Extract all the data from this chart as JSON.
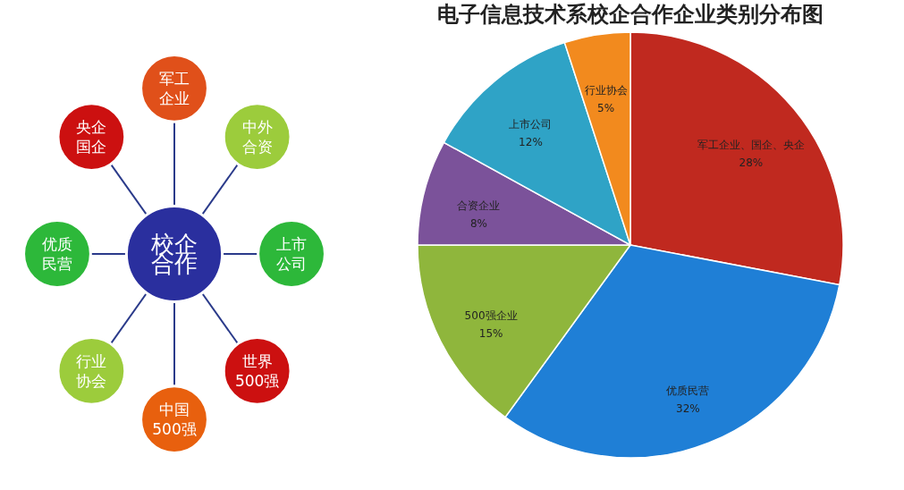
{
  "chart_data": [
    {
      "type": "other",
      "annotations": [
        "校企合作",
        "军工企业",
        "中外合资",
        "上市公司",
        "世界500强",
        "中国500强",
        "行业协会",
        "优质民营",
        "央企国企"
      ],
      "colors": [
        "#2a2f9e",
        "#e0501a",
        "#9ccc3c",
        "#2db83a",
        "#cc1010",
        "#e8600e",
        "#9ccc3c",
        "#2db83a",
        "#cc1010"
      ]
    },
    {
      "type": "pie",
      "title": "电子信息技术系校企合作企业类别分布图",
      "categories": [
        "军工企业、国企、央企",
        "优质民营",
        "500强企业",
        "合资企业",
        "上市公司",
        "行业协会"
      ],
      "values": [
        28,
        32,
        15,
        8,
        12,
        5
      ],
      "value_labels": [
        "28%",
        "32%",
        "15%",
        "8%",
        "12%",
        "5%"
      ],
      "colors": [
        "#c0291f",
        "#1f7fd6",
        "#8fb63c",
        "#7b529a",
        "#2fa3c6",
        "#f28a1e"
      ]
    }
  ]
}
